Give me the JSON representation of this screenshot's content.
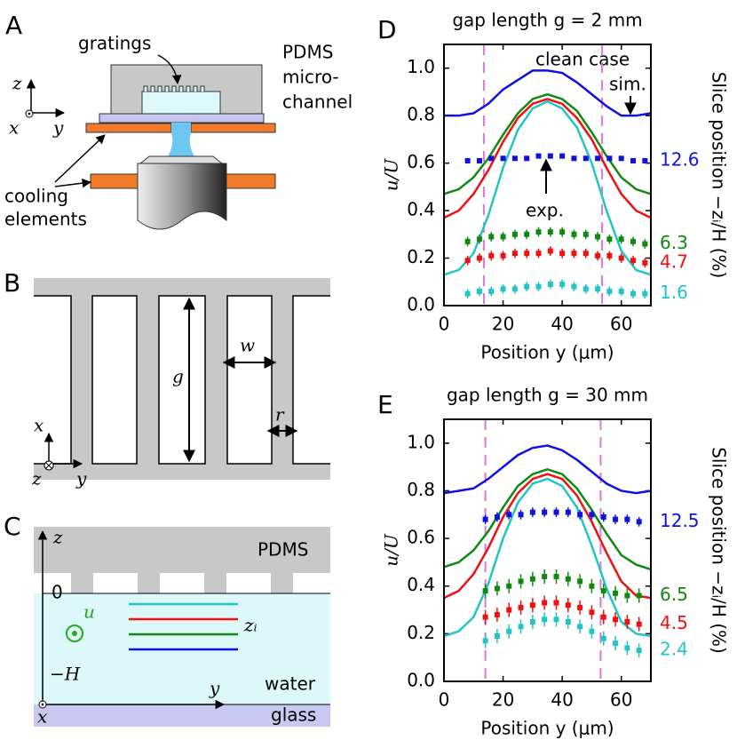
{
  "panels": {
    "A": {
      "label": "A",
      "gratings": "gratings",
      "pdms": [
        "PDMS",
        "micro-",
        "channel"
      ],
      "cooling": [
        "cooling",
        "elements"
      ],
      "axes": [
        "z",
        "x",
        "y"
      ]
    },
    "B": {
      "label": "B",
      "dims": [
        "g",
        "w",
        "r"
      ],
      "axes": [
        "x",
        "z",
        "y"
      ]
    },
    "C": {
      "label": "C",
      "axes": [
        "z",
        "x",
        "y"
      ],
      "pdms": "PDMS",
      "levels": [
        "0",
        "−H"
      ],
      "zi": "zᵢ",
      "u": "u",
      "water": "water",
      "glass": "glass"
    }
  },
  "chart_data": [
    {
      "type": "line",
      "panel": "D",
      "title": "gap length g = 2 mm",
      "xlabel": "Position y (μm)",
      "ylabel": "u/U",
      "y2label": "Slice position −zᵢ/H (%)",
      "annotations": [
        "clean case",
        "sim.",
        "exp."
      ],
      "xlim": [
        0,
        70
      ],
      "ylim": [
        0,
        1.1
      ],
      "xticks": [
        0,
        20,
        40,
        60
      ],
      "yticks": [
        {
          "value": 0,
          "label": "0.0"
        },
        0.2,
        0.4,
        0.6,
        0.8,
        {
          "value": 1,
          "label": "1.0"
        }
      ],
      "vlines": [
        13.5,
        53.5
      ],
      "vline_color": "#dd77dd",
      "series": [
        {
          "style": "line",
          "color": "#1010e0",
          "x": [
            0,
            5,
            10,
            15,
            20,
            25,
            30,
            35,
            40,
            45,
            50,
            55,
            60,
            65,
            70
          ],
          "values": [
            0.8,
            0.8,
            0.81,
            0.85,
            0.91,
            0.95,
            0.99,
            0.99,
            0.98,
            0.94,
            0.89,
            0.84,
            0.8,
            0.8,
            0.81
          ]
        },
        {
          "style": "line",
          "color": "#118811",
          "x": [
            0,
            5,
            10,
            15,
            20,
            25,
            30,
            35,
            40,
            45,
            50,
            55,
            60,
            65,
            70
          ],
          "values": [
            0.47,
            0.49,
            0.54,
            0.62,
            0.72,
            0.81,
            0.87,
            0.89,
            0.87,
            0.82,
            0.73,
            0.63,
            0.54,
            0.49,
            0.47
          ]
        },
        {
          "style": "line",
          "color": "#ee1111",
          "x": [
            0,
            5,
            10,
            15,
            20,
            25,
            30,
            35,
            40,
            45,
            50,
            55,
            60,
            65,
            70
          ],
          "values": [
            0.37,
            0.4,
            0.47,
            0.57,
            0.69,
            0.79,
            0.85,
            0.87,
            0.85,
            0.79,
            0.7,
            0.58,
            0.47,
            0.4,
            0.37
          ]
        },
        {
          "style": "line",
          "color": "#22c4c4",
          "x": [
            0,
            5,
            10,
            15,
            20,
            25,
            30,
            35,
            40,
            45,
            50,
            55,
            60,
            65,
            70
          ],
          "values": [
            0.13,
            0.15,
            0.22,
            0.38,
            0.58,
            0.74,
            0.83,
            0.86,
            0.83,
            0.75,
            0.6,
            0.4,
            0.23,
            0.15,
            0.13
          ]
        },
        {
          "style": "errorbar",
          "name": "12.6",
          "color": "#1010e0",
          "x": [
            8,
            12,
            16,
            20,
            24,
            28,
            32,
            36,
            40,
            44,
            48,
            52,
            56,
            60,
            64,
            68
          ],
          "values": [
            0.61,
            0.61,
            0.62,
            0.62,
            0.62,
            0.62,
            0.63,
            0.63,
            0.63,
            0.62,
            0.62,
            0.62,
            0.62,
            0.62,
            0.61,
            0.61
          ],
          "errors": [
            0.01,
            0.01,
            0.01,
            0.01,
            0.01,
            0.01,
            0.01,
            0.01,
            0.01,
            0.01,
            0.01,
            0.01,
            0.01,
            0.01,
            0.01,
            0.01
          ]
        },
        {
          "style": "errorbar",
          "name": "6.3",
          "color": "#118811",
          "x": [
            8,
            12,
            16,
            20,
            24,
            28,
            32,
            36,
            40,
            44,
            48,
            52,
            56,
            60,
            64,
            68
          ],
          "values": [
            0.27,
            0.28,
            0.29,
            0.29,
            0.3,
            0.3,
            0.31,
            0.31,
            0.31,
            0.3,
            0.3,
            0.29,
            0.28,
            0.28,
            0.27,
            0.26
          ],
          "errors": [
            0.02,
            0.02,
            0.02,
            0.02,
            0.02,
            0.02,
            0.02,
            0.02,
            0.02,
            0.02,
            0.02,
            0.02,
            0.02,
            0.02,
            0.02,
            0.02
          ]
        },
        {
          "style": "errorbar",
          "name": "4.7",
          "color": "#ee1111",
          "x": [
            8,
            12,
            16,
            20,
            24,
            28,
            32,
            36,
            40,
            44,
            48,
            52,
            56,
            60,
            64,
            68
          ],
          "values": [
            0.19,
            0.2,
            0.21,
            0.21,
            0.22,
            0.22,
            0.22,
            0.23,
            0.22,
            0.22,
            0.22,
            0.21,
            0.21,
            0.2,
            0.19,
            0.18
          ],
          "errors": [
            0.02,
            0.02,
            0.02,
            0.02,
            0.02,
            0.02,
            0.02,
            0.02,
            0.02,
            0.02,
            0.02,
            0.02,
            0.02,
            0.02,
            0.02,
            0.02
          ]
        },
        {
          "style": "errorbar",
          "name": "1.6",
          "color": "#22c4c4",
          "x": [
            8,
            12,
            16,
            20,
            24,
            28,
            32,
            36,
            40,
            44,
            48,
            52,
            56,
            60,
            64,
            68
          ],
          "values": [
            0.05,
            0.06,
            0.06,
            0.07,
            0.07,
            0.08,
            0.08,
            0.09,
            0.09,
            0.08,
            0.07,
            0.07,
            0.06,
            0.06,
            0.05,
            0.05
          ],
          "errors": [
            0.02,
            0.02,
            0.02,
            0.02,
            0.02,
            0.02,
            0.02,
            0.02,
            0.02,
            0.02,
            0.02,
            0.02,
            0.02,
            0.02,
            0.02,
            0.02
          ]
        }
      ]
    },
    {
      "type": "line",
      "panel": "E",
      "title": "gap length g = 30 mm",
      "xlabel": "Position y (μm)",
      "ylabel": "u/U",
      "y2label": "Slice position −zᵢ/H (%)",
      "xlim": [
        0,
        70
      ],
      "ylim": [
        0,
        1.1
      ],
      "xticks": [
        0,
        20,
        40,
        60
      ],
      "yticks": [
        {
          "value": 0,
          "label": "0.0"
        },
        0.2,
        0.4,
        0.6,
        0.8,
        {
          "value": 1,
          "label": "1.0"
        }
      ],
      "vlines": [
        14,
        53
      ],
      "vline_color": "#dd77dd",
      "series": [
        {
          "style": "line",
          "color": "#1010e0",
          "x": [
            0,
            5,
            10,
            15,
            20,
            25,
            30,
            35,
            40,
            45,
            50,
            55,
            60,
            65,
            70
          ],
          "values": [
            0.79,
            0.8,
            0.81,
            0.85,
            0.9,
            0.95,
            0.98,
            0.99,
            0.97,
            0.93,
            0.88,
            0.83,
            0.8,
            0.79,
            0.8
          ]
        },
        {
          "style": "line",
          "color": "#118811",
          "x": [
            0,
            5,
            10,
            15,
            20,
            25,
            30,
            35,
            40,
            45,
            50,
            55,
            60,
            65,
            70
          ],
          "values": [
            0.48,
            0.5,
            0.55,
            0.63,
            0.73,
            0.82,
            0.87,
            0.89,
            0.87,
            0.81,
            0.72,
            0.62,
            0.53,
            0.49,
            0.47
          ]
        },
        {
          "style": "line",
          "color": "#ee1111",
          "x": [
            0,
            5,
            10,
            15,
            20,
            25,
            30,
            35,
            40,
            45,
            50,
            55,
            60,
            65,
            70
          ],
          "values": [
            0.35,
            0.38,
            0.45,
            0.56,
            0.69,
            0.79,
            0.85,
            0.87,
            0.85,
            0.78,
            0.67,
            0.54,
            0.42,
            0.36,
            0.35
          ]
        },
        {
          "style": "line",
          "color": "#22c4c4",
          "x": [
            0,
            5,
            10,
            15,
            20,
            25,
            30,
            35,
            40,
            45,
            50,
            55,
            60,
            65,
            70
          ],
          "values": [
            0.19,
            0.21,
            0.27,
            0.41,
            0.6,
            0.75,
            0.83,
            0.85,
            0.82,
            0.73,
            0.57,
            0.39,
            0.25,
            0.2,
            0.19
          ]
        },
        {
          "style": "errorbar",
          "name": "12.5",
          "color": "#1010e0",
          "x": [
            14,
            18,
            22,
            26,
            30,
            34,
            38,
            42,
            46,
            50,
            54,
            58,
            62,
            66
          ],
          "values": [
            0.68,
            0.69,
            0.7,
            0.7,
            0.71,
            0.71,
            0.71,
            0.71,
            0.7,
            0.7,
            0.69,
            0.68,
            0.68,
            0.67
          ],
          "errors": [
            0.02,
            0.02,
            0.02,
            0.02,
            0.02,
            0.02,
            0.02,
            0.02,
            0.02,
            0.02,
            0.02,
            0.02,
            0.02,
            0.02
          ]
        },
        {
          "style": "errorbar",
          "name": "6.5",
          "color": "#118811",
          "x": [
            14,
            18,
            22,
            26,
            30,
            34,
            38,
            42,
            46,
            50,
            54,
            58,
            62,
            66
          ],
          "values": [
            0.38,
            0.39,
            0.4,
            0.42,
            0.43,
            0.44,
            0.44,
            0.43,
            0.42,
            0.4,
            0.38,
            0.37,
            0.36,
            0.36
          ],
          "errors": [
            0.03,
            0.03,
            0.03,
            0.03,
            0.03,
            0.03,
            0.03,
            0.03,
            0.03,
            0.03,
            0.03,
            0.03,
            0.03,
            0.03
          ]
        },
        {
          "style": "errorbar",
          "name": "4.5",
          "color": "#ee1111",
          "x": [
            14,
            18,
            22,
            26,
            30,
            34,
            38,
            42,
            46,
            50,
            54,
            58,
            62,
            66
          ],
          "values": [
            0.27,
            0.28,
            0.3,
            0.31,
            0.32,
            0.33,
            0.33,
            0.32,
            0.31,
            0.29,
            0.27,
            0.26,
            0.25,
            0.24
          ],
          "errors": [
            0.03,
            0.03,
            0.03,
            0.03,
            0.03,
            0.03,
            0.03,
            0.03,
            0.03,
            0.03,
            0.03,
            0.03,
            0.03,
            0.03
          ]
        },
        {
          "style": "errorbar",
          "name": "2.4",
          "color": "#22c4c4",
          "x": [
            14,
            18,
            22,
            26,
            30,
            34,
            38,
            42,
            46,
            50,
            54,
            58,
            62,
            66
          ],
          "values": [
            0.17,
            0.19,
            0.21,
            0.23,
            0.25,
            0.26,
            0.26,
            0.25,
            0.23,
            0.21,
            0.18,
            0.16,
            0.14,
            0.13
          ],
          "errors": [
            0.03,
            0.03,
            0.03,
            0.03,
            0.03,
            0.03,
            0.03,
            0.03,
            0.03,
            0.03,
            0.03,
            0.03,
            0.03,
            0.03
          ]
        }
      ]
    }
  ]
}
